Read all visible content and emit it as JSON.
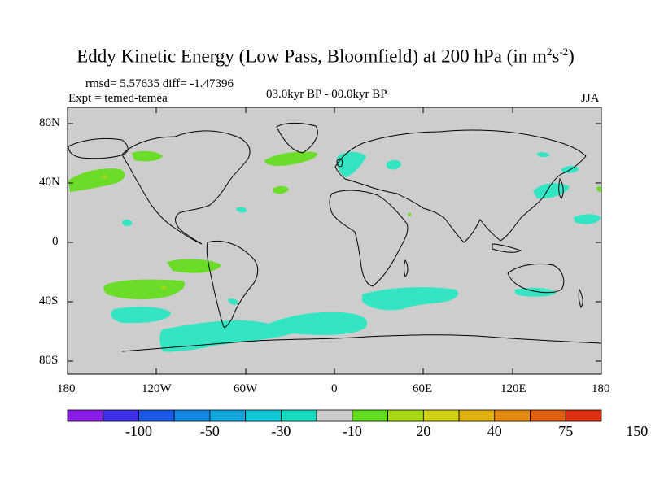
{
  "title": {
    "main": "Eddy Kinetic Energy (Low Pass, Bloomfield) at 200 hPa (in m",
    "sup1": "2",
    "mid": "s",
    "sup2": "-2",
    "end": ")"
  },
  "stats": "rmsd= 5.57635 diff= -1.47396",
  "experiment": "Expt = temed-temea",
  "period": "03.0kyr BP - 00.0kyr BP",
  "season": "JJA",
  "lat_ticks": [
    "80N",
    "40N",
    "0",
    "40S",
    "80S"
  ],
  "lon_ticks": [
    "180",
    "120W",
    "60W",
    "0",
    "60E",
    "120E",
    "180"
  ],
  "colorbar": {
    "colors": [
      "#8a1ee6",
      "#3b2ee6",
      "#1a5ae6",
      "#1488e0",
      "#12a8dc",
      "#10c8d6",
      "#18dcc0",
      "#cdcdcd",
      "#62dc1e",
      "#a6d614",
      "#cfd012",
      "#e0b010",
      "#e48a10",
      "#e06010",
      "#dc3010"
    ],
    "labels": [
      "-100",
      "-50",
      "-30",
      "-10",
      "20",
      "40",
      "75",
      "150"
    ]
  },
  "colors": {
    "ocean_land_background": "#cdcdcd",
    "negative_anomaly": "#33e5c2",
    "positive_anomaly": "#6bdc27",
    "coastline": "#000000"
  }
}
